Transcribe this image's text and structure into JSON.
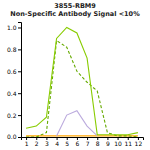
{
  "chart_data": {
    "type": "line",
    "title": "3855-RBM9",
    "subtitle": "Non-Specific Antibody Signal <10%",
    "xlim": [
      0.5,
      12.5
    ],
    "xticks": [
      1,
      2,
      3,
      4,
      5,
      6,
      7,
      8,
      9,
      10,
      11,
      12
    ],
    "ylim": [
      0,
      1.05
    ],
    "yticks": [
      {
        "value": 0,
        "label": "0.0"
      },
      0.2,
      0.4,
      0.6,
      0.8,
      {
        "value": 1.0,
        "label": "1.0"
      }
    ],
    "grid": false,
    "series": [
      {
        "color": "#FFA500",
        "line_style": "solid",
        "x": [
          1,
          2,
          3,
          4,
          5,
          6,
          7,
          8,
          9,
          10,
          11,
          12
        ],
        "values": [
          0.01,
          0.01,
          0.01,
          0.01,
          0.01,
          0.01,
          0.01,
          0.01,
          0.01,
          0.01,
          0.01,
          0.01
        ]
      },
      {
        "color": "#BBAADD",
        "line_style": "solid",
        "x": [
          4,
          5,
          6,
          7,
          8
        ],
        "values": [
          0.01,
          0.2,
          0.24,
          0.1,
          0.01
        ]
      },
      {
        "color": "#66AA00",
        "line_style": "dashed",
        "x": [
          1,
          2,
          3,
          4,
          5,
          6,
          7,
          8,
          9,
          10,
          11,
          12
        ],
        "values": [
          0.0,
          0.0,
          0.04,
          0.88,
          0.82,
          0.6,
          0.5,
          0.42,
          0.04,
          0.01,
          0.01,
          0.0
        ]
      },
      {
        "color": "#88CC00",
        "line_style": "solid",
        "x": [
          1,
          2,
          3,
          4,
          5,
          6,
          7,
          8,
          9,
          10,
          11,
          12
        ],
        "values": [
          0.08,
          0.1,
          0.18,
          0.9,
          1.0,
          0.95,
          0.72,
          0.02,
          0.02,
          0.02,
          0.02,
          0.04
        ]
      }
    ]
  }
}
